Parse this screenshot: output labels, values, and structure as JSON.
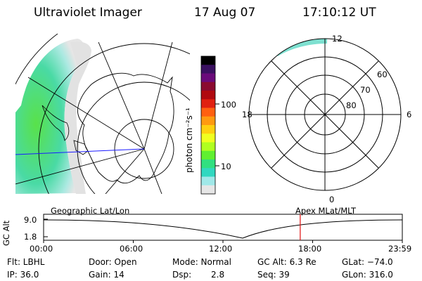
{
  "header": {
    "instrument": "Ultraviolet Imager",
    "date": "17 Aug 07",
    "time": "17:10:12 UT"
  },
  "colorbar": {
    "unit_label": "photon cm⁻²s⁻¹",
    "ticks": [
      "100",
      "10"
    ],
    "colors": [
      "#000000",
      "#3a1060",
      "#6a0a7a",
      "#8a0a30",
      "#b00a10",
      "#e02010",
      "#ff6010",
      "#ff9a10",
      "#ffd010",
      "#f0ff20",
      "#b0ff20",
      "#60f030",
      "#30e080",
      "#30d8c0",
      "#a0e8e8",
      "#e6e6e6"
    ]
  },
  "polar_plot": {
    "lat_labels": [
      "60",
      "70",
      "80"
    ],
    "mlt_labels": {
      "top": "12",
      "left": "18",
      "right": "6",
      "bottom": "0"
    }
  },
  "altitude_plot": {
    "left_caption": "Geographic Lat/Lon",
    "right_caption": "Apex MLat/MLT",
    "y_axis_label": "GC Alt",
    "y_ticks": [
      "9.0",
      "1.8"
    ],
    "x_ticks": [
      "00:00",
      "06:00",
      "12:00",
      "18:00",
      "23:59"
    ],
    "current_time_fraction": 0.7154,
    "marker_color": "#e01010"
  },
  "info": {
    "filter": "Flt: LBHL",
    "ip": "IP: 36.0",
    "door": "Door: Open",
    "gain": "Gain: 14",
    "mode": "Mode: Normal",
    "dsp_label": "Dsp:",
    "dsp_value": "2.8",
    "gc_alt": "GC Alt: 6.3 Re",
    "seq": "Seq: 39",
    "glat": "GLat: −74.0",
    "glon": "GLon: 316.0"
  }
}
